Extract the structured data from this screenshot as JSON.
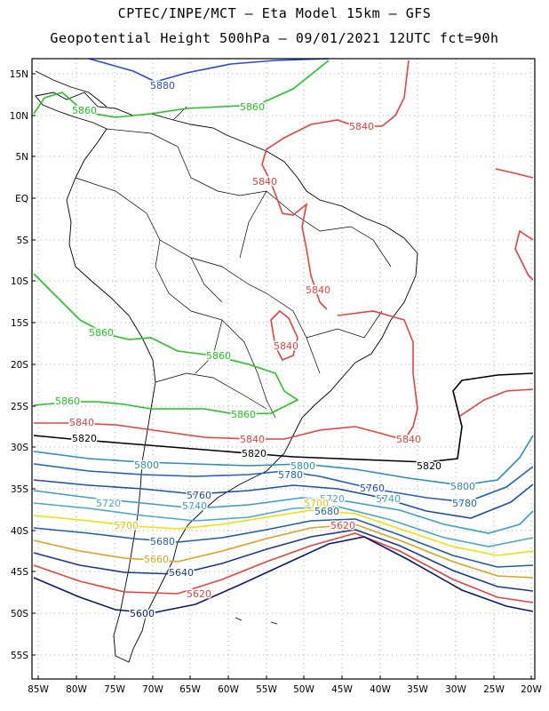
{
  "header": {
    "line1": "CPTEC/INPE/MCT –  Eta Model 15km – GFS",
    "line2": "Geopotential Height 500hPa – 09/01/2021 12UTC fct=90h"
  },
  "axes": {
    "lat_labels": [
      "15N",
      "10N",
      "5N",
      "EQ",
      "5S",
      "10S",
      "15S",
      "20S",
      "25S",
      "30S",
      "35S",
      "40S",
      "45S",
      "50S",
      "55S"
    ],
    "lon_labels": [
      "85W",
      "80W",
      "75W",
      "70W",
      "65W",
      "60W",
      "55W",
      "50W",
      "45W",
      "40W",
      "35W",
      "30W",
      "25W",
      "20W"
    ],
    "grid": "dotted"
  },
  "contour_levels": [
    {
      "value": "5880",
      "color": "#2a4bd7"
    },
    {
      "value": "5860",
      "color": "#22c422"
    },
    {
      "value": "5840",
      "color": "#e8413f"
    },
    {
      "value": "5820",
      "color": "#000000"
    },
    {
      "value": "5800",
      "color": "#2a8fb8"
    },
    {
      "value": "5780",
      "color": "#1f5fc8"
    },
    {
      "value": "5760",
      "color": "#1f4fa8"
    },
    {
      "value": "5740",
      "color": "#3a9fc0"
    },
    {
      "value": "5720",
      "color": "#4aa8c8"
    },
    {
      "value": "5700",
      "color": "#f0e000"
    },
    {
      "value": "5680",
      "color": "#1f5fa8"
    },
    {
      "value": "5660",
      "color": "#e0a020"
    },
    {
      "value": "5640",
      "color": "#1a3a90"
    },
    {
      "value": "5620",
      "color": "#e8413f"
    },
    {
      "value": "5600",
      "color": "#0a1a6a"
    }
  ],
  "contour_labels": [
    {
      "text": "5880",
      "color": "#2a4bd7"
    },
    {
      "text": "5860",
      "color": "#22c422"
    },
    {
      "text": "5860",
      "color": "#22c422"
    },
    {
      "text": "5840",
      "color": "#e8413f"
    },
    {
      "text": "5840",
      "color": "#e8413f"
    },
    {
      "text": "5840",
      "color": "#e8413f"
    },
    {
      "text": "5860",
      "color": "#22c422"
    },
    {
      "text": "5840",
      "color": "#e8413f"
    },
    {
      "text": "5860",
      "color": "#22c422"
    },
    {
      "text": "5860",
      "color": "#22c422"
    },
    {
      "text": "5860",
      "color": "#22c422"
    },
    {
      "text": "5840",
      "color": "#e8413f"
    },
    {
      "text": "5840",
      "color": "#e8413f"
    },
    {
      "text": "5840",
      "color": "#e8413f"
    },
    {
      "text": "5820",
      "color": "#000000"
    },
    {
      "text": "5820",
      "color": "#000000"
    },
    {
      "text": "5820",
      "color": "#000000"
    },
    {
      "text": "5800",
      "color": "#2a8fb8"
    },
    {
      "text": "5800",
      "color": "#2a8fb8"
    },
    {
      "text": "5800",
      "color": "#2a8fb8"
    },
    {
      "text": "5780",
      "color": "#1f5fc8"
    },
    {
      "text": "5780",
      "color": "#1f5fc8"
    },
    {
      "text": "5760",
      "color": "#1f4fa8"
    },
    {
      "text": "5760",
      "color": "#1f4fa8"
    },
    {
      "text": "5740",
      "color": "#3a9fc0"
    },
    {
      "text": "5740",
      "color": "#3a9fc0"
    },
    {
      "text": "5720",
      "color": "#4aa8c8"
    },
    {
      "text": "5720",
      "color": "#4aa8c8"
    },
    {
      "text": "5700",
      "color": "#e0c800"
    },
    {
      "text": "5700",
      "color": "#e0c800"
    },
    {
      "text": "5680",
      "color": "#1f5fa8"
    },
    {
      "text": "5680",
      "color": "#1f5fa8"
    },
    {
      "text": "5660",
      "color": "#e0a020"
    },
    {
      "text": "5640",
      "color": "#1a3a90"
    },
    {
      "text": "5620",
      "color": "#e8413f"
    },
    {
      "text": "5620",
      "color": "#e8413f"
    },
    {
      "text": "5600",
      "color": "#0a1a6a"
    }
  ]
}
